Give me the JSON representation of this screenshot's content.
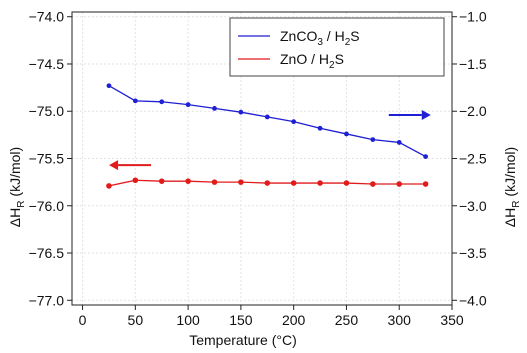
{
  "chart_data": {
    "type": "line",
    "x_axis": {
      "label": "Temperature (°C)",
      "range": [
        -10,
        350
      ],
      "ticks": [
        0,
        50,
        100,
        150,
        200,
        250,
        300,
        350
      ]
    },
    "y_axis_left": {
      "label_main": "ΔH",
      "label_sub": "R",
      "label_rest": " (kJ/mol)",
      "range": [
        -77.05,
        -73.95
      ],
      "ticks": [
        -77.0,
        -76.5,
        -76.0,
        -75.5,
        -75.0,
        -74.5,
        -74.0
      ],
      "tick_labels": [
        "−77.0",
        "−76.5",
        "−76.0",
        "−75.5",
        "−75.0",
        "−74.5",
        "−74.0"
      ]
    },
    "y_axis_right": {
      "label_main": "ΔH",
      "label_sub": "R",
      "label_rest": " (kJ/mol)",
      "range": [
        -4.05,
        -0.95
      ],
      "ticks": [
        -4.0,
        -3.5,
        -3.0,
        -2.5,
        -2.0,
        -1.5,
        -1.0
      ],
      "tick_labels": [
        "−4.0",
        "−3.5",
        "−3.0",
        "−2.5",
        "−2.0",
        "−1.5",
        "−1.0"
      ]
    },
    "grid": true,
    "legend_position": "top-right",
    "series": [
      {
        "name": "ZnCO3 / H2S",
        "legend_parts": [
          "ZnCO",
          "3",
          " / H",
          "2",
          "S"
        ],
        "axis": "right",
        "color": "#1f1fd4",
        "markers": false,
        "x": [
          25,
          50,
          75,
          100,
          125,
          150,
          175,
          200,
          225,
          250,
          275,
          300,
          325
        ],
        "y": [
          -1.73,
          -1.89,
          -1.9,
          -1.93,
          -1.97,
          -2.01,
          -2.06,
          -2.11,
          -2.18,
          -2.24,
          -2.3,
          -2.33,
          -2.48
        ]
      },
      {
        "name": "ZnO / H2S",
        "legend_parts": [
          "ZnO / H",
          "2",
          "S"
        ],
        "axis": "left",
        "color": "#e11b1b",
        "markers": true,
        "x": [
          25,
          50,
          75,
          100,
          125,
          150,
          175,
          200,
          225,
          250,
          275,
          300,
          325
        ],
        "y": [
          -75.79,
          -75.73,
          -75.74,
          -75.74,
          -75.75,
          -75.75,
          -75.76,
          -75.76,
          -75.76,
          -75.76,
          -75.77,
          -75.77,
          -75.77
        ]
      }
    ],
    "annotations": [
      {
        "type": "arrow",
        "direction": "right",
        "color": "#1f1fd4",
        "axis": "right",
        "anchor_x": 310,
        "anchor_y": -2.04
      },
      {
        "type": "arrow",
        "direction": "left",
        "color": "#e11b1b",
        "axis": "left",
        "anchor_x": 45,
        "anchor_y": -75.57
      }
    ]
  }
}
